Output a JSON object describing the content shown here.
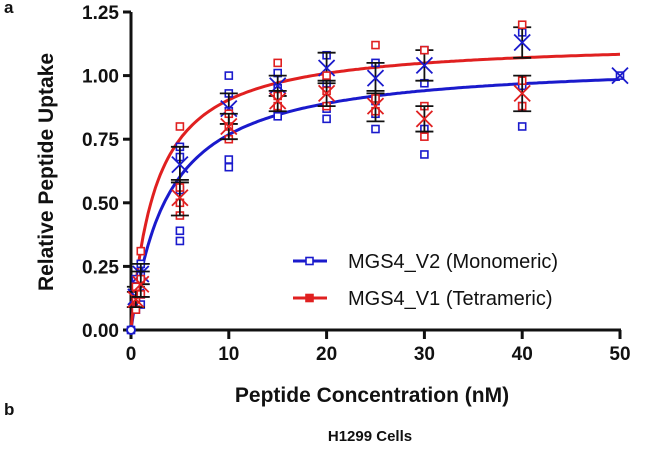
{
  "panels": {
    "a": "a",
    "b": "b"
  },
  "caption_b": "H1299 Cells",
  "chart_data": {
    "type": "scatter",
    "title": "",
    "xlabel": "Peptide Concentration (nM)",
    "ylabel": "Relative Peptide Uptake",
    "xlim": [
      0,
      50
    ],
    "ylim": [
      0,
      1.25
    ],
    "xticks": [
      0,
      10,
      20,
      30,
      40,
      50
    ],
    "xtick_labels": [
      "0",
      "10",
      "20",
      "30",
      "40",
      "50"
    ],
    "yticks": [
      0,
      0.25,
      0.5,
      0.75,
      1.0,
      1.25
    ],
    "ytick_labels": [
      "0.00",
      "0.25",
      "0.50",
      "0.75",
      "1.00",
      "1.25"
    ],
    "grid": false,
    "legend_position": "bottom-right",
    "series": [
      {
        "name": "MGS4_V2 (Monomeric)",
        "color": "#1a1acc",
        "fit": {
          "model": "one-site binding",
          "bmax": 1.06,
          "kd": 3.8
        },
        "x": [
          0,
          0.5,
          1,
          5,
          10,
          15,
          20,
          25,
          30,
          40,
          50
        ],
        "replicates": [
          [
            0.0
          ],
          [
            0.08,
            0.12,
            0.15,
            0.2
          ],
          [
            0.1,
            0.14,
            0.22,
            0.26
          ],
          [
            0.35,
            0.39,
            0.55,
            0.68,
            0.72
          ],
          [
            0.64,
            0.67,
            0.86,
            0.93,
            1.0
          ],
          [
            0.84,
            0.87,
            0.95,
            1.01
          ],
          [
            0.83,
            0.87,
            0.97,
            1.08
          ],
          [
            0.79,
            0.85,
            0.9,
            1.05
          ],
          [
            0.69,
            0.79,
            0.97,
            1.1
          ],
          [
            0.8,
            0.88,
            0.96,
            1.17
          ],
          [
            1.0
          ]
        ],
        "means": [
          0.0,
          0.13,
          0.22,
          0.65,
          0.87,
          0.96,
          1.03,
          0.99,
          1.04,
          1.13,
          1.0
        ],
        "errors": [
          0.0,
          0.04,
          0.04,
          0.07,
          0.06,
          0.04,
          0.06,
          0.06,
          0.06,
          0.06,
          0.0
        ]
      },
      {
        "name": "MGS4_V1 (Tetrameric)",
        "color": "#e02020",
        "fit": {
          "model": "one-site binding",
          "bmax": 1.14,
          "kd": 2.6
        },
        "x": [
          0.5,
          1,
          5,
          10,
          15,
          20,
          25,
          30,
          40
        ],
        "replicates": [
          [
            0.08,
            0.12,
            0.17
          ],
          [
            0.14,
            0.2,
            0.31
          ],
          [
            0.45,
            0.5,
            0.56,
            0.8
          ],
          [
            0.75,
            0.8,
            0.85
          ],
          [
            0.88,
            0.92,
            1.05
          ],
          [
            0.88,
            0.94,
            1.0
          ],
          [
            0.86,
            0.91,
            1.12
          ],
          [
            0.76,
            0.88,
            1.1
          ],
          [
            0.88,
            0.98,
            1.2
          ]
        ],
        "means": [
          0.12,
          0.18,
          0.52,
          0.8,
          0.9,
          0.93,
          0.88,
          0.83,
          0.93
        ],
        "errors": [
          0.03,
          0.05,
          0.07,
          0.05,
          0.04,
          0.05,
          0.06,
          0.05,
          0.07
        ]
      }
    ]
  }
}
